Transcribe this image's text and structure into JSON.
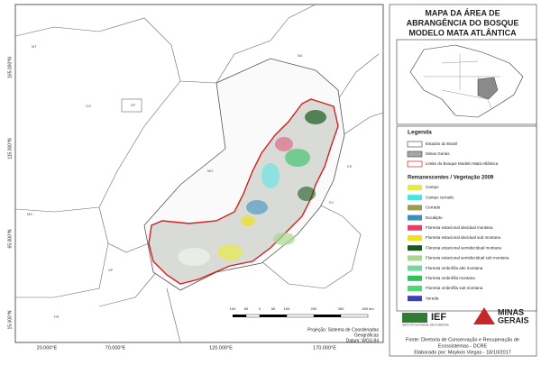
{
  "title": [
    "MAPA DA ÁREA DE",
    "ABRANGÊNCIA DO BOSQUE",
    "MODELO MATA ATLÂNTICA"
  ],
  "map": {
    "lat_labels": [
      "165.000°N",
      "115.000°N",
      "65.000°N",
      "15.000°N"
    ],
    "lon_labels": [
      "20.000°E",
      "70.000°E",
      "120.000°E",
      "170.000°E"
    ],
    "state_labels": [
      "MT",
      "GO",
      "DF",
      "BA",
      "MG",
      "ES",
      "SP",
      "RJ",
      "MS",
      "PR"
    ]
  },
  "legend": {
    "title": "Legenda",
    "items": [
      {
        "label": "Estados do Brasil",
        "color": "#ffffff",
        "border": "#555555"
      },
      {
        "label": "Minas Gerais",
        "color": "#a6a6a6",
        "border": "#555555"
      },
      {
        "label": "Limite do Bosque Modelo Mata Atlântica",
        "color": "#ffffff",
        "border": "#d02020"
      }
    ],
    "subtitle": "Remanescentes / Vegetação 2009",
    "vegetation": [
      {
        "label": "Campo",
        "color": "#e8e84a"
      },
      {
        "label": "Campo cerrado",
        "color": "#3ee8e8"
      },
      {
        "label": "Cerrado",
        "color": "#9a9a50"
      },
      {
        "label": "Eucalipto",
        "color": "#3a8fc0"
      },
      {
        "label": "Floresta estacional decidual montana",
        "color": "#e0406a"
      },
      {
        "label": "Floresta estacional decidual sub montana",
        "color": "#f0e020"
      },
      {
        "label": "Floresta estacional semidecidual montana",
        "color": "#1a5a20"
      },
      {
        "label": "Floresta estacional semidecidual sub montana",
        "color": "#a8d890"
      },
      {
        "label": "Floresta ombrófila alto montana",
        "color": "#70d8a0"
      },
      {
        "label": "Floresta ombrófila montana",
        "color": "#30c060"
      },
      {
        "label": "Floresta ombrófila sub montana",
        "color": "#50d870"
      },
      {
        "label": "Vereda",
        "color": "#4040b0"
      }
    ]
  },
  "scale": {
    "labels": [
      "100",
      "50",
      "0",
      "50",
      "100",
      "200",
      "300",
      "400 km"
    ]
  },
  "projection": [
    "Projeção: Sistema de Coordenadas",
    "Geográficas",
    "Datum: WGS 84"
  ],
  "logos": {
    "ief": "IEF",
    "ief_sub": "INSTITUTO ESTADUAL DE FLORESTAS",
    "mg": [
      "MINAS",
      "GERAIS"
    ]
  },
  "credits": [
    "Fonte: Diretoria de Conservação e Recuperação de",
    "Ecossistemas - DCRE",
    "Elaborado por: Maykon Viegas - 18/10/2017"
  ]
}
